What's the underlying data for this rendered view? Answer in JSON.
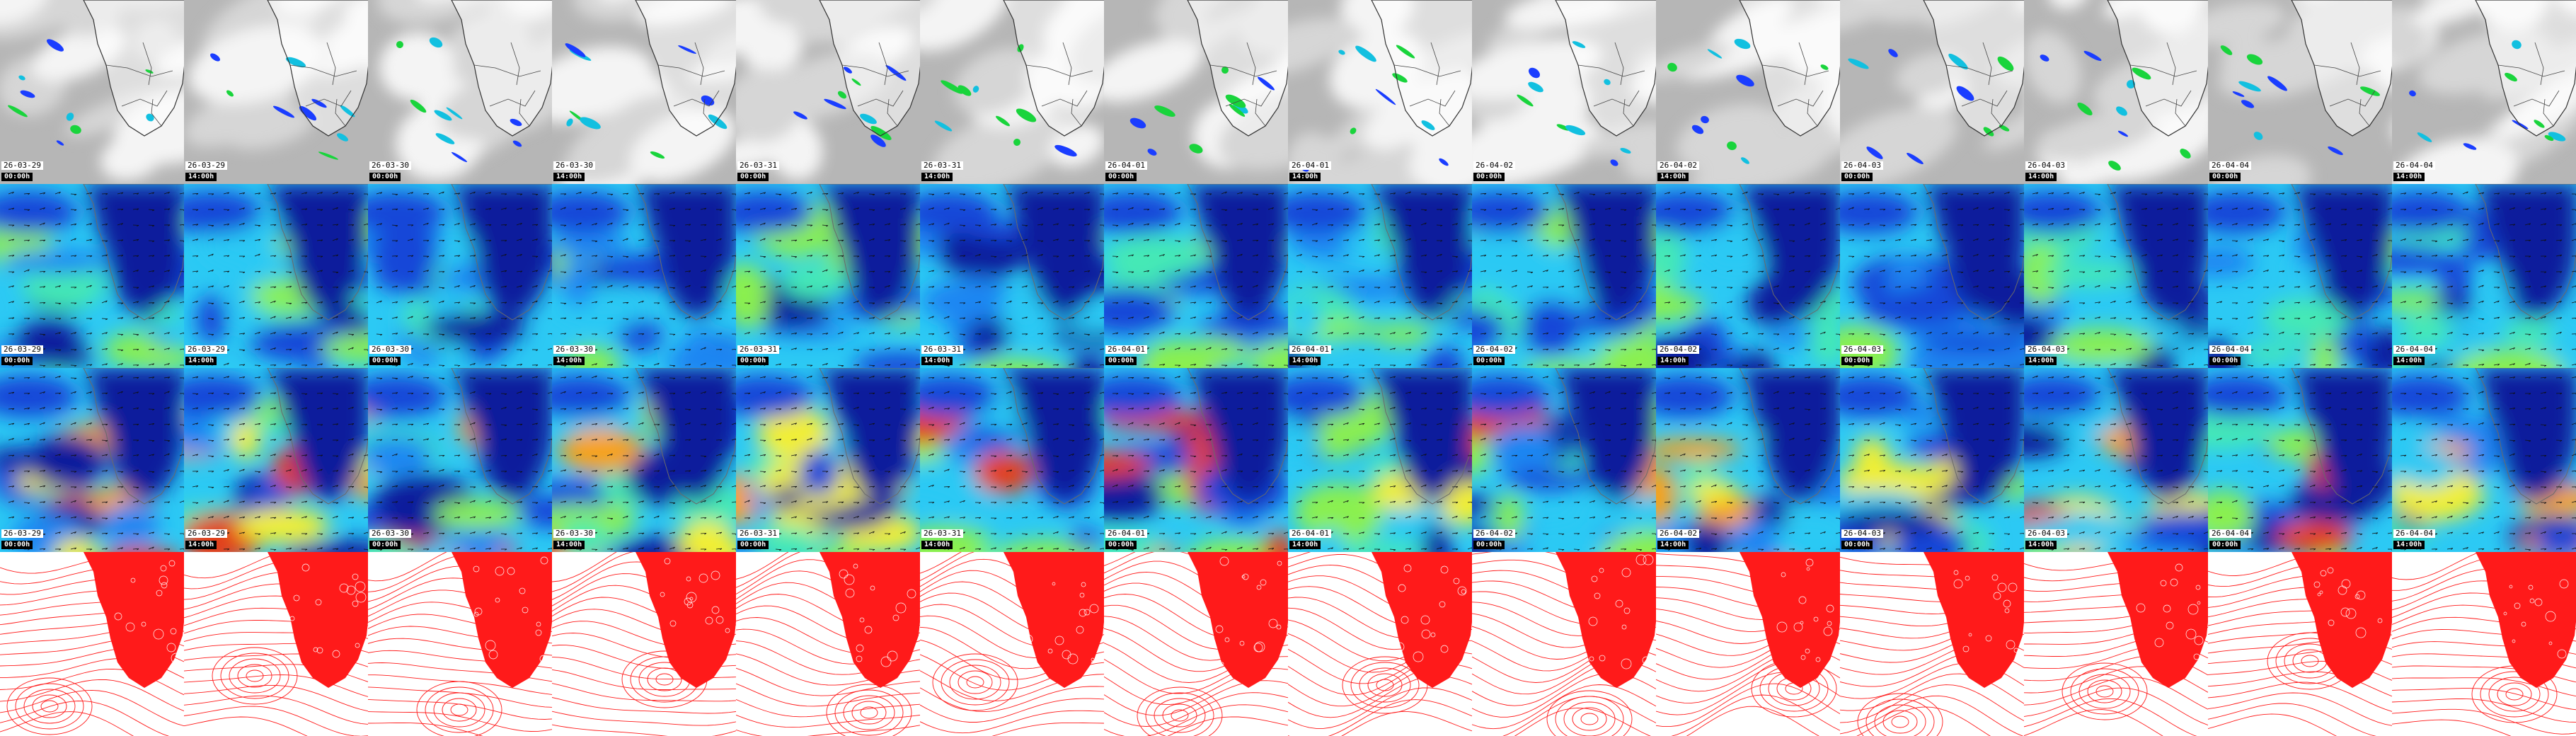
{
  "layout": {
    "columns": 14,
    "rows": [
      "satellite",
      "wind_low",
      "wind_high",
      "pressure"
    ]
  },
  "colors": {
    "background": "#ffffff",
    "coast_line": "#6a6a6a",
    "pressure_contour": "#ff1a1a",
    "land_fill_pressure_row": "#ff1a1a",
    "wind_palette": [
      "#0a1c9c",
      "#1447d8",
      "#1f86f2",
      "#2cc9f4",
      "#45e9b6",
      "#8af050",
      "#f2ef33",
      "#f8a21b",
      "#e2401a"
    ],
    "cloud_palette": [
      "#b6b6b6",
      "#d6d6d6",
      "#f4f4f4"
    ],
    "precip_palette": [
      "#1a3dff",
      "#12c0e0",
      "#19d43c"
    ]
  },
  "columns": [
    {
      "date": "26-03-29",
      "time": "00:00h"
    },
    {
      "date": "26-03-29",
      "time": "14:00h"
    },
    {
      "date": "26-03-30",
      "time": "00:00h"
    },
    {
      "date": "26-03-30",
      "time": "14:00h"
    },
    {
      "date": "26-03-31",
      "time": "00:00h"
    },
    {
      "date": "26-03-31",
      "time": "14:00h"
    },
    {
      "date": "26-04-01",
      "time": "00:00h"
    },
    {
      "date": "26-04-01",
      "time": "14:00h"
    },
    {
      "date": "26-04-02",
      "time": "00:00h"
    },
    {
      "date": "26-04-02",
      "time": "14:00h"
    },
    {
      "date": "26-04-03",
      "time": "00:00h"
    },
    {
      "date": "26-04-03",
      "time": "14:00h"
    },
    {
      "date": "26-04-04",
      "time": "00:00h"
    },
    {
      "date": "26-04-04",
      "time": "14:00h"
    }
  ]
}
